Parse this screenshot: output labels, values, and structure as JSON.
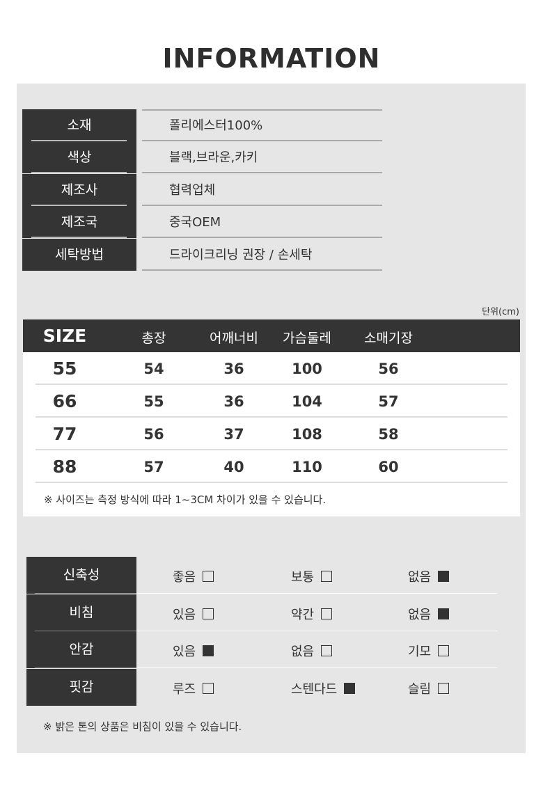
{
  "title": "INFORMATION",
  "info": [
    {
      "label": "소재",
      "value": "폴리에스터100%"
    },
    {
      "label": "색상",
      "value": "블랙,브라운,카키"
    },
    {
      "label": "제조사",
      "value": "협력업체"
    },
    {
      "label": "제조국",
      "value": "중국OEM"
    },
    {
      "label": "세탁방법",
      "value": "드라이크리닝 권장 / 손세탁"
    }
  ],
  "size_table": {
    "unit": "단위(cm)",
    "headers": [
      "SIZE",
      "총장",
      "어깨너비",
      "가슴둘레",
      "소매기장"
    ],
    "rows": [
      [
        "55",
        "54",
        "36",
        "100",
        "56"
      ],
      [
        "66",
        "55",
        "36",
        "104",
        "57"
      ],
      [
        "77",
        "56",
        "37",
        "108",
        "58"
      ],
      [
        "88",
        "57",
        "40",
        "110",
        "60"
      ]
    ],
    "note": "※ 사이즈는 측정 방식에 따라 1~3CM 차이가 있을 수 있습니다."
  },
  "feel": {
    "rows": [
      {
        "label": "신축성",
        "options": [
          {
            "text": "좋음",
            "checked": false
          },
          {
            "text": "보통",
            "checked": false
          },
          {
            "text": "없음",
            "checked": true
          }
        ]
      },
      {
        "label": "비침",
        "options": [
          {
            "text": "있음",
            "checked": false
          },
          {
            "text": "약간",
            "checked": false
          },
          {
            "text": "없음",
            "checked": true
          }
        ]
      },
      {
        "label": "안감",
        "options": [
          {
            "text": "있음",
            "checked": true
          },
          {
            "text": "없음",
            "checked": false
          },
          {
            "text": "기모",
            "checked": false
          }
        ]
      },
      {
        "label": "핏감",
        "options": [
          {
            "text": "루즈",
            "checked": false
          },
          {
            "text": "스텐다드",
            "checked": true
          },
          {
            "text": "슬림",
            "checked": false
          }
        ]
      }
    ],
    "note": "※ 밝은 톤의 상품은 비침이 있을 수 있습니다."
  }
}
